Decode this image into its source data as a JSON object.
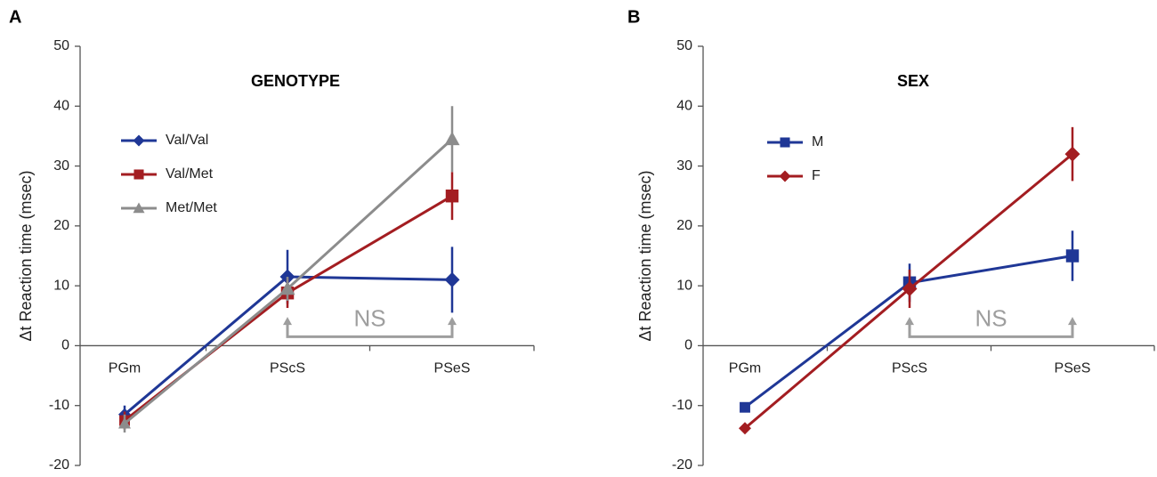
{
  "chart_data": [
    {
      "type": "line",
      "panel_label": "A",
      "title": "GENOTYPE",
      "xlabel": "",
      "ylabel": "Δt Reaction time (msec)",
      "categories": [
        "PGm",
        "PScS",
        "PSeS"
      ],
      "ylim": [
        -20,
        50
      ],
      "yticks": [
        -20,
        -10,
        0,
        10,
        20,
        30,
        40,
        50
      ],
      "ytick_labels": [
        "-20",
        "-10",
        "0",
        "10",
        "20",
        "30",
        "40",
        "50"
      ],
      "legend_position": "upper-left",
      "series": [
        {
          "name": "Val/Val",
          "marker": "diamond",
          "color": "#1f3796",
          "values": [
            -11.5,
            11.5,
            11
          ],
          "errors": [
            1.5,
            4.5,
            5.5
          ]
        },
        {
          "name": "Val/Met",
          "marker": "square",
          "color": "#a31d21",
          "values": [
            -12.5,
            8.8,
            25
          ],
          "errors": [
            1.5,
            2.5,
            4
          ]
        },
        {
          "name": "Met/Met",
          "marker": "triangle",
          "color": "#8c8c8c",
          "values": [
            -13,
            9.5,
            34.5
          ],
          "errors": [
            1.5,
            2,
            5.5
          ]
        }
      ],
      "annotation": {
        "text": "NS",
        "from": "PScS",
        "to": "PSeS",
        "color": "#9e9e9e"
      }
    },
    {
      "type": "line",
      "panel_label": "B",
      "title": "SEX",
      "xlabel": "",
      "ylabel": "Δt Reaction time (msec)",
      "categories": [
        "PGm",
        "PScS",
        "PSeS"
      ],
      "ylim": [
        -20,
        50
      ],
      "yticks": [
        -20,
        -10,
        0,
        10,
        20,
        30,
        40,
        50
      ],
      "ytick_labels": [
        "-20",
        "-10",
        "0",
        "10",
        "20",
        "30",
        "40",
        "50"
      ],
      "legend_position": "upper-left",
      "series": [
        {
          "name": "M",
          "marker": "square",
          "color": "#1f3796",
          "values": [
            -10.3,
            10.5,
            15
          ],
          "errors": [
            0,
            3.2,
            4.2
          ]
        },
        {
          "name": "F",
          "marker": "diamond",
          "color": "#a31d21",
          "values": [
            -13.8,
            9.5,
            32
          ],
          "errors": [
            0,
            3.2,
            4.5
          ]
        }
      ],
      "annotation": {
        "text": "NS",
        "from": "PScS",
        "to": "PSeS",
        "color": "#9e9e9e"
      }
    }
  ]
}
